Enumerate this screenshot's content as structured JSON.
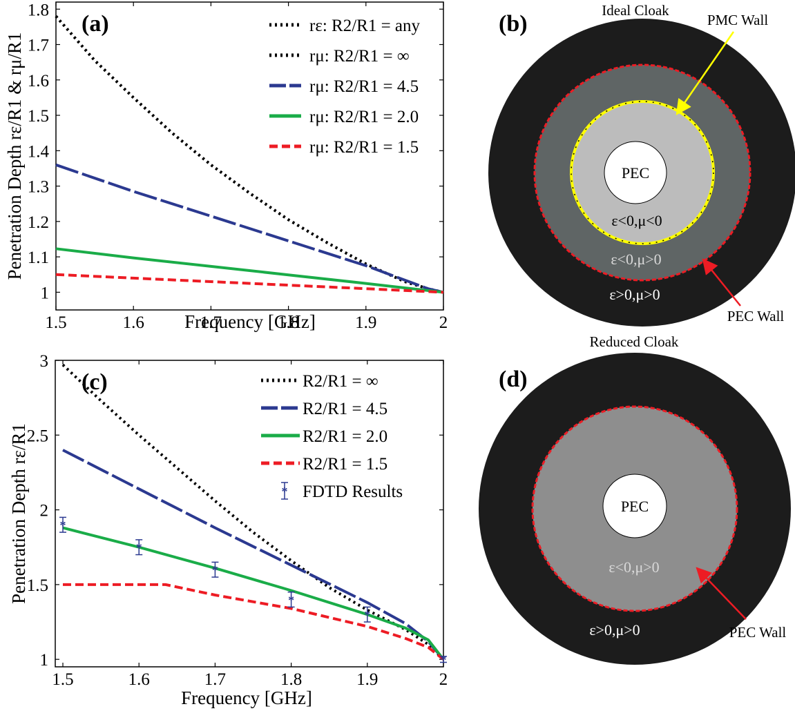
{
  "panels": {
    "a": {
      "label": "(a)",
      "xlabel": "Frequency [GHz]",
      "ylabel": "Penetration Depth rε/R1 & rμ/R1",
      "xticks": [
        "1.5",
        "1.6",
        "1.7",
        "1.8",
        "1.9",
        "2"
      ],
      "yticks": [
        "1",
        "1.1",
        "1.2",
        "1.3",
        "1.4",
        "1.5",
        "1.6",
        "1.7",
        "1.8"
      ]
    },
    "b": {
      "label": "(b)",
      "title": "Ideal Cloak",
      "pmc_label": "PMC Wall",
      "pec_wall_label": "PEC Wall",
      "core_label": "PEC",
      "region_inner": "ε<0,μ<0",
      "region_middle": "ε<0,μ>0",
      "region_outer": "ε>0,μ>0"
    },
    "c": {
      "label": "(c)",
      "xlabel": "Frequency [GHz]",
      "ylabel": "Penetration Depth rε/R1",
      "xticks": [
        "1.5",
        "1.6",
        "1.7",
        "1.8",
        "1.9",
        "2"
      ],
      "yticks": [
        "1",
        "1.5",
        "2",
        "2.5",
        "3"
      ]
    },
    "d": {
      "label": "(d)",
      "title": "Reduced Cloak",
      "pec_wall_label": "PEC Wall",
      "core_label": "PEC",
      "region_middle": "ε<0,μ>0",
      "region_outer": "ε>0,μ>0"
    }
  },
  "colors": {
    "black": "#000000",
    "blue": "#2b3990",
    "green": "#1aac48",
    "red": "#ed1c24",
    "yellow": "#ffff00",
    "outer_ring": "#1c1c1c",
    "middle_ring": "#5f6565",
    "inner_disk": "#bcbcbc",
    "reduced_middle": "#8e8e8e"
  },
  "chart_data": [
    {
      "type": "line",
      "xlim": [
        1.5,
        2.0
      ],
      "ylim": [
        0.95,
        1.82
      ],
      "grid": false,
      "legend_position": "top-right",
      "series": [
        {
          "name": "rε: R2/R1 = any",
          "style": "dotted",
          "color": "#000000",
          "x": [
            1.5,
            1.55,
            1.6,
            1.65,
            1.7,
            1.75,
            1.8,
            1.85,
            1.9,
            1.95,
            1.98,
            2.0
          ],
          "y": [
            1.78,
            1.655,
            1.55,
            1.45,
            1.36,
            1.28,
            1.205,
            1.14,
            1.08,
            1.03,
            1.01,
            1.0
          ]
        },
        {
          "name": "rμ: R2/R1 = ∞",
          "style": "dotted",
          "color": "#000000",
          "x": [
            1.5,
            1.55,
            1.6,
            1.65,
            1.7,
            1.75,
            1.8,
            1.85,
            1.9,
            1.95,
            1.98,
            2.0
          ],
          "y": [
            1.78,
            1.655,
            1.55,
            1.45,
            1.36,
            1.28,
            1.205,
            1.14,
            1.08,
            1.03,
            1.01,
            1.0
          ]
        },
        {
          "name": "rμ: R2/R1 = 4.5",
          "style": "long-dash",
          "color": "#2b3990",
          "x": [
            1.5,
            1.6,
            1.7,
            1.8,
            1.9,
            1.98,
            2.0
          ],
          "y": [
            1.36,
            1.285,
            1.215,
            1.145,
            1.075,
            1.01,
            1.0
          ]
        },
        {
          "name": "rμ: R2/R1 = 2.0",
          "style": "solid",
          "color": "#1aac48",
          "x": [
            1.5,
            1.6,
            1.7,
            1.8,
            1.9,
            2.0
          ],
          "y": [
            1.123,
            1.097,
            1.073,
            1.049,
            1.025,
            1.0
          ]
        },
        {
          "name": "rμ: R2/R1 = 1.5",
          "style": "dash",
          "color": "#ed1c24",
          "x": [
            1.5,
            1.6,
            1.7,
            1.8,
            1.9,
            2.0
          ],
          "y": [
            1.05,
            1.04,
            1.03,
            1.02,
            1.01,
            1.0
          ]
        }
      ]
    },
    {
      "type": "line",
      "xlim": [
        1.49,
        2.0
      ],
      "ylim": [
        0.95,
        3.0
      ],
      "grid": false,
      "legend_position": "top-right",
      "series": [
        {
          "name": "R2/R1 = ∞",
          "style": "dotted",
          "color": "#000000",
          "x": [
            1.5,
            1.55,
            1.6,
            1.65,
            1.7,
            1.75,
            1.8,
            1.85,
            1.9,
            1.95,
            1.98,
            2.0
          ],
          "y": [
            2.97,
            2.73,
            2.5,
            2.28,
            2.06,
            1.85,
            1.66,
            1.48,
            1.33,
            1.2,
            1.1,
            1.0
          ]
        },
        {
          "name": "R2/R1 = 4.5",
          "style": "long-dash",
          "color": "#2b3990",
          "x": [
            1.5,
            1.6,
            1.7,
            1.8,
            1.9,
            1.95,
            1.98,
            2.0
          ],
          "y": [
            2.4,
            2.14,
            1.88,
            1.63,
            1.38,
            1.24,
            1.12,
            1.0
          ]
        },
        {
          "name": "R2/R1 = 2.0",
          "style": "solid",
          "color": "#1aac48",
          "x": [
            1.5,
            1.6,
            1.7,
            1.8,
            1.9,
            1.95,
            1.98,
            2.0
          ],
          "y": [
            1.88,
            1.75,
            1.61,
            1.46,
            1.3,
            1.21,
            1.13,
            1.0
          ]
        },
        {
          "name": "R2/R1 = 1.5",
          "style": "dash",
          "color": "#ed1c24",
          "x": [
            1.5,
            1.6,
            1.635,
            1.7,
            1.8,
            1.9,
            1.95,
            1.98,
            2.0
          ],
          "y": [
            1.5,
            1.5,
            1.5,
            1.43,
            1.34,
            1.22,
            1.14,
            1.08,
            1.0
          ]
        },
        {
          "name": "FDTD Results",
          "style": "markers-errorbars",
          "color": "#2b3990",
          "x": [
            1.5,
            1.6,
            1.7,
            1.8,
            1.9,
            2.0
          ],
          "y": [
            1.9,
            1.75,
            1.6,
            1.4,
            1.3,
            1.0
          ],
          "err": [
            0.05,
            0.05,
            0.05,
            0.05,
            0.05,
            0.02
          ]
        }
      ]
    }
  ]
}
